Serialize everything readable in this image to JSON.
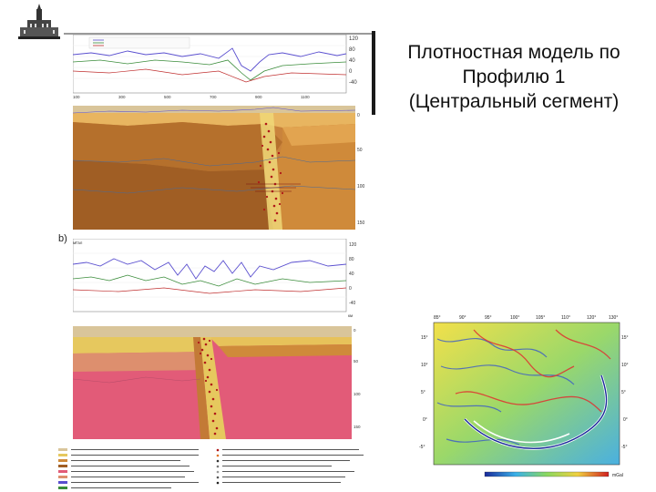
{
  "slide": {
    "title_lines": [
      "Плотностная модель по",
      "Профилю 1",
      "(Центральный сегмент)"
    ]
  },
  "panel_b_letter": "b)",
  "units": {
    "mgal": "мГал",
    "km": "км"
  },
  "colors": {
    "model_orange": "#d9892f",
    "model_brown": "#a9652a",
    "model_yellow": "#e6c85e",
    "model_pink": "#e05a76",
    "graph_line": "#5a4fcf",
    "earthquake": "#b01818"
  }
}
